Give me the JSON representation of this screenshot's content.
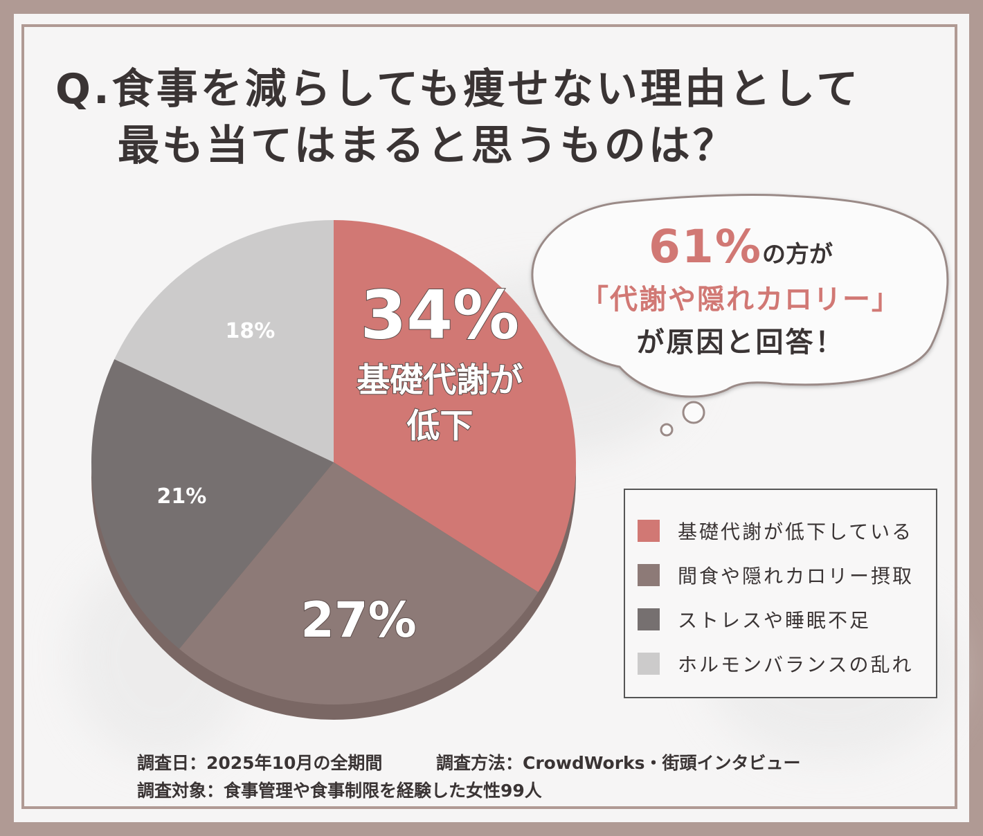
{
  "title": {
    "line1": "Q.食事を減らしても痩せない理由として",
    "line2": "最も当てはまると思うものは？"
  },
  "chart_data": {
    "type": "pie",
    "slices": [
      {
        "label": "基礎代謝が低下している",
        "value": 34,
        "color": "#d17874",
        "display": "34%",
        "sub1": "基礎代謝が",
        "sub2": "低下"
      },
      {
        "label": "間食や隠れカロリー摂取",
        "value": 27,
        "color": "#8d7a77",
        "display": "27%"
      },
      {
        "label": "ストレスや睡眠不足",
        "value": 21,
        "color": "#767070",
        "display": "21%"
      },
      {
        "label": "ホルモンバランスの乱れ",
        "value": 18,
        "color": "#cccbcb",
        "display": "18%"
      }
    ]
  },
  "bubble": {
    "pct": "61%",
    "line1_rest": "の方が",
    "line2": "「代謝や隠れカロリー」",
    "line3": "が原因と回答！"
  },
  "footer": {
    "line1a": "調査日：2025年10月の全期間",
    "line1b": "調査方法：CrowdWorks・街頭インタビュー",
    "line2": "調査対象：食事管理や食事制限を経験した女性99人"
  },
  "colors": {
    "frame": "#b09a94",
    "accent": "#d17874",
    "text": "#3a3434"
  }
}
